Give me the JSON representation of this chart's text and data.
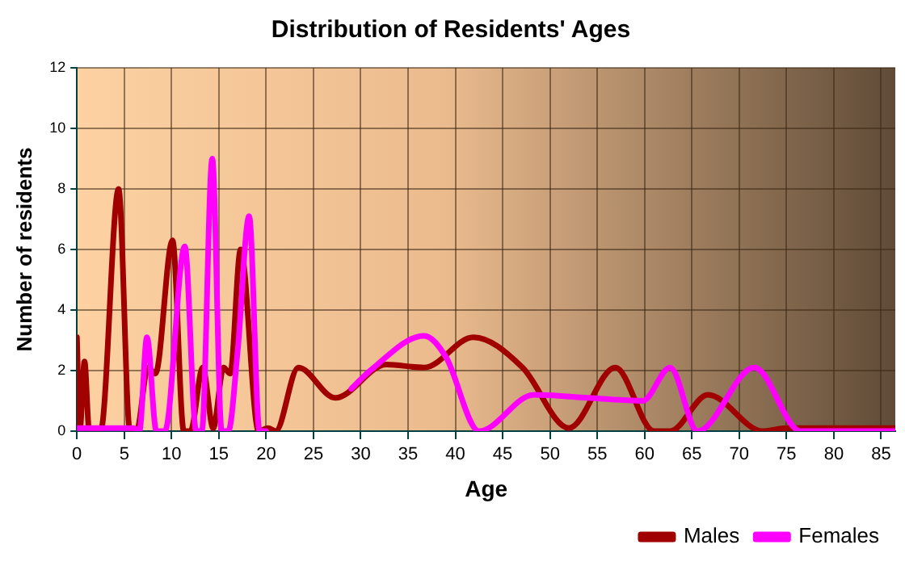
{
  "chart_data": {
    "type": "line",
    "title": "Distribution of Residents' Ages",
    "xlabel": "Age",
    "ylabel": "Number of residents",
    "xlim": [
      0,
      86.5
    ],
    "xticks": [
      0,
      5,
      10,
      15,
      20,
      25,
      30,
      35,
      40,
      45,
      50,
      55,
      60,
      65,
      70,
      75,
      80,
      85
    ],
    "ylim": [
      0,
      12
    ],
    "yticks": [
      0,
      2,
      4,
      6,
      8,
      10,
      12
    ],
    "grid": true,
    "legend": "bottom right",
    "marker": "none",
    "line_style": "solid",
    "series": [
      {
        "name": "Males",
        "color": "#a00000",
        "x": [
          0,
          0.3,
          0.8,
          1.3,
          2.5,
          4.4,
          5.6,
          6.3,
          7.5,
          8.3,
          10.1,
          11.3,
          12,
          13.3,
          14.4,
          15.5,
          16.2,
          17.3,
          19.2,
          20.2,
          21,
          23.4,
          27.3,
          32.7,
          36.7,
          41.9,
          47.1,
          52,
          56.9,
          61,
          62.7,
          66.7,
          72.5,
          75,
          80,
          86.5
        ],
        "values": [
          3.1,
          0,
          2.3,
          0,
          0,
          8,
          0,
          0,
          2.1,
          1.9,
          6.3,
          0,
          0,
          2.1,
          0.1,
          2.1,
          1.9,
          6,
          0,
          0.1,
          0,
          2.1,
          1.1,
          2.2,
          2.1,
          3.1,
          2.1,
          0.1,
          2.1,
          0,
          0,
          1.2,
          0,
          0.1,
          0.1,
          0.1
        ]
      },
      {
        "name": "Females",
        "color": "#ff00ff",
        "x": [
          0,
          6,
          6.6,
          7.4,
          8.4,
          9.3,
          11.4,
          12.6,
          13.2,
          14.3,
          15.3,
          16,
          17,
          18.2,
          19.3,
          20,
          24,
          29,
          31,
          36.7,
          39,
          42.5,
          48.3,
          54,
          59.8,
          62.7,
          65.6,
          71.6,
          76.5,
          80,
          86.5
        ],
        "values": [
          0.1,
          0.1,
          0,
          3.1,
          0,
          0,
          6.1,
          0,
          0,
          9,
          0,
          0,
          2.7,
          7.1,
          0,
          0,
          null,
          1.4,
          2,
          3.15,
          2.45,
          0,
          1.2,
          1.1,
          1,
          2.1,
          0,
          2.1,
          0,
          0,
          0
        ]
      }
    ]
  }
}
